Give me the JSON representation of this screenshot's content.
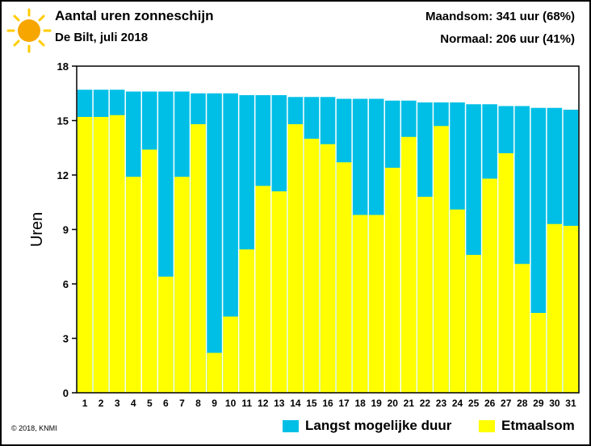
{
  "header": {
    "title": "Aantal uren zonneschijn",
    "subtitle": "De Bilt, juli 2018",
    "monthly_total": "Maandsom: 341 uur (68%)",
    "normal": "Normaal: 206 uur (41%)",
    "icon": "sun-icon"
  },
  "footer": {
    "copyright": "© 2018, KNMI"
  },
  "colors": {
    "max_duration": "#00bfe6",
    "daily_sum": "#ffff00",
    "sun": "#f7a600",
    "sun_rays": "#ffcc00"
  },
  "chart_data": {
    "type": "bar",
    "ylabel": "Uren",
    "xlabel": "",
    "ylim": [
      0,
      18
    ],
    "yticks": [
      0,
      3,
      6,
      9,
      12,
      15,
      18
    ],
    "grid": false,
    "legend_position": "bottom-right",
    "categories": [
      "1",
      "2",
      "3",
      "4",
      "5",
      "6",
      "7",
      "8",
      "9",
      "10",
      "11",
      "12",
      "13",
      "14",
      "15",
      "16",
      "17",
      "18",
      "19",
      "20",
      "21",
      "22",
      "23",
      "24",
      "25",
      "26",
      "27",
      "28",
      "29",
      "30",
      "31"
    ],
    "series": [
      {
        "name": "Langst mogelijke duur",
        "values": [
          16.7,
          16.7,
          16.7,
          16.6,
          16.6,
          16.6,
          16.6,
          16.5,
          16.5,
          16.5,
          16.4,
          16.4,
          16.4,
          16.3,
          16.3,
          16.3,
          16.2,
          16.2,
          16.2,
          16.1,
          16.1,
          16.0,
          16.0,
          16.0,
          15.9,
          15.9,
          15.8,
          15.8,
          15.7,
          15.7,
          15.6
        ]
      },
      {
        "name": "Etmaalsom",
        "values": [
          15.2,
          15.2,
          15.3,
          11.9,
          13.4,
          6.4,
          11.9,
          14.8,
          2.2,
          4.2,
          7.9,
          11.4,
          11.1,
          14.8,
          14.0,
          13.7,
          12.7,
          9.8,
          9.8,
          12.4,
          14.1,
          10.8,
          14.7,
          10.1,
          7.6,
          11.8,
          13.2,
          7.1,
          4.4,
          9.3,
          9.2
        ]
      }
    ]
  }
}
